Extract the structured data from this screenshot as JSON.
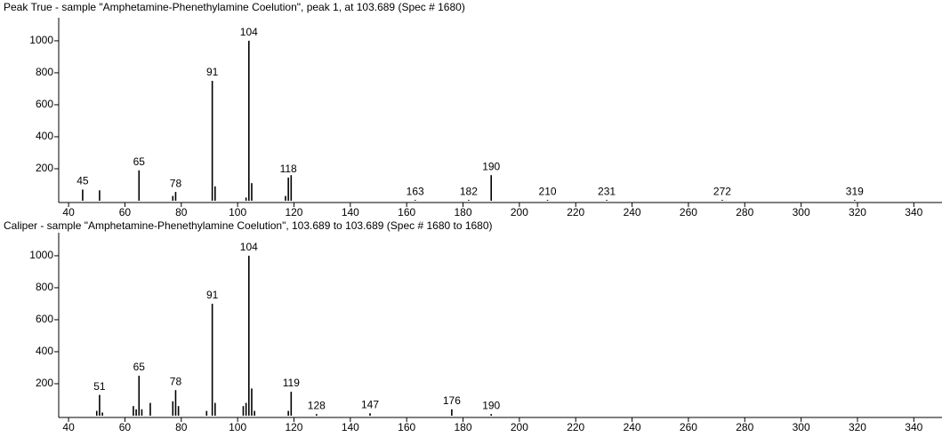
{
  "chart_data": [
    {
      "type": "bar",
      "title": "Peak True - sample \"Amphetamine-Phenethylamine Coelution\", peak 1, at 103.689 (Spec # 1680)",
      "x": [
        45,
        51,
        65,
        77,
        78,
        91,
        92,
        103,
        104,
        105,
        117,
        118,
        119,
        163,
        182,
        190,
        210,
        231,
        272,
        319
      ],
      "values": [
        70,
        65,
        190,
        30,
        55,
        750,
        90,
        20,
        1000,
        110,
        30,
        145,
        160,
        5,
        5,
        160,
        5,
        5,
        5,
        5
      ],
      "labels": [
        "45",
        null,
        "65",
        null,
        "78",
        "91",
        null,
        null,
        "104",
        null,
        null,
        "118",
        null,
        "163",
        "182",
        "190",
        "210",
        "231",
        "272",
        "319"
      ],
      "color": "#000000",
      "xlim": [
        36.5,
        350
      ],
      "ylim": [
        0,
        1144
      ],
      "xticks": [
        40,
        60,
        80,
        100,
        120,
        140,
        160,
        180,
        200,
        220,
        240,
        260,
        280,
        300,
        320,
        340
      ],
      "yticks": [
        200,
        400,
        600,
        800,
        1000
      ]
    },
    {
      "type": "bar",
      "title": "Caliper - sample \"Amphetamine-Phenethylamine Coelution\",  103.689 to 103.689 (Spec # 1680 to 1680)",
      "x": [
        50,
        51,
        52,
        63,
        64,
        65,
        66,
        69,
        77,
        78,
        79,
        89,
        91,
        92,
        102,
        103,
        104,
        105,
        106,
        118,
        119,
        128,
        147,
        176,
        190
      ],
      "values": [
        30,
        130,
        20,
        60,
        40,
        250,
        40,
        80,
        90,
        160,
        60,
        30,
        700,
        80,
        60,
        80,
        1000,
        170,
        30,
        30,
        150,
        10,
        15,
        40,
        10
      ],
      "labels": [
        null,
        "51",
        null,
        null,
        null,
        "65",
        null,
        null,
        null,
        "78",
        null,
        null,
        "91",
        null,
        null,
        null,
        "104",
        null,
        null,
        null,
        "119",
        "128",
        "147",
        "176",
        "190"
      ],
      "color": "#000000",
      "xlim": [
        36.5,
        350
      ],
      "ylim": [
        0,
        1144
      ],
      "xticks": [
        40,
        60,
        80,
        100,
        120,
        140,
        160,
        180,
        200,
        220,
        240,
        260,
        280,
        300,
        320,
        340
      ],
      "yticks": [
        200,
        400,
        600,
        800,
        1000
      ]
    }
  ]
}
